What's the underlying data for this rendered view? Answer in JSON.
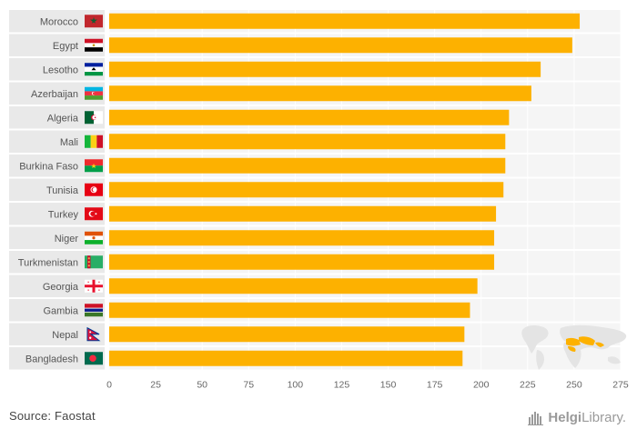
{
  "chart_data": {
    "type": "bar",
    "orientation": "horizontal",
    "categories": [
      "Morocco",
      "Egypt",
      "Lesotho",
      "Azerbaijan",
      "Algeria",
      "Mali",
      "Burkina Faso",
      "Tunisia",
      "Turkey",
      "Niger",
      "Turkmenistan",
      "Georgia",
      "Gambia",
      "Nepal",
      "Bangladesh"
    ],
    "values": [
      253,
      249,
      232,
      227,
      215,
      213,
      213,
      212,
      208,
      207,
      207,
      198,
      194,
      191,
      190
    ],
    "xlim": [
      0,
      275
    ],
    "xticks": [
      0,
      25,
      50,
      75,
      100,
      125,
      150,
      175,
      200,
      225,
      250,
      275
    ],
    "bar_color": "#FDB100",
    "grid": true,
    "flags": [
      "morocco-flag-icon",
      "egypt-flag-icon",
      "lesotho-flag-icon",
      "azerbaijan-flag-icon",
      "algeria-flag-icon",
      "mali-flag-icon",
      "burkina-faso-flag-icon",
      "tunisia-flag-icon",
      "turkey-flag-icon",
      "niger-flag-icon",
      "turkmenistan-flag-icon",
      "georgia-flag-icon",
      "gambia-flag-icon",
      "nepal-flag-icon",
      "bangladesh-flag-icon"
    ]
  },
  "footer": {
    "source": "Source: Faostat"
  },
  "brand": {
    "part1": "Helgi",
    "part2": "Library.",
    "icon": "bar-chart-logo-icon"
  }
}
